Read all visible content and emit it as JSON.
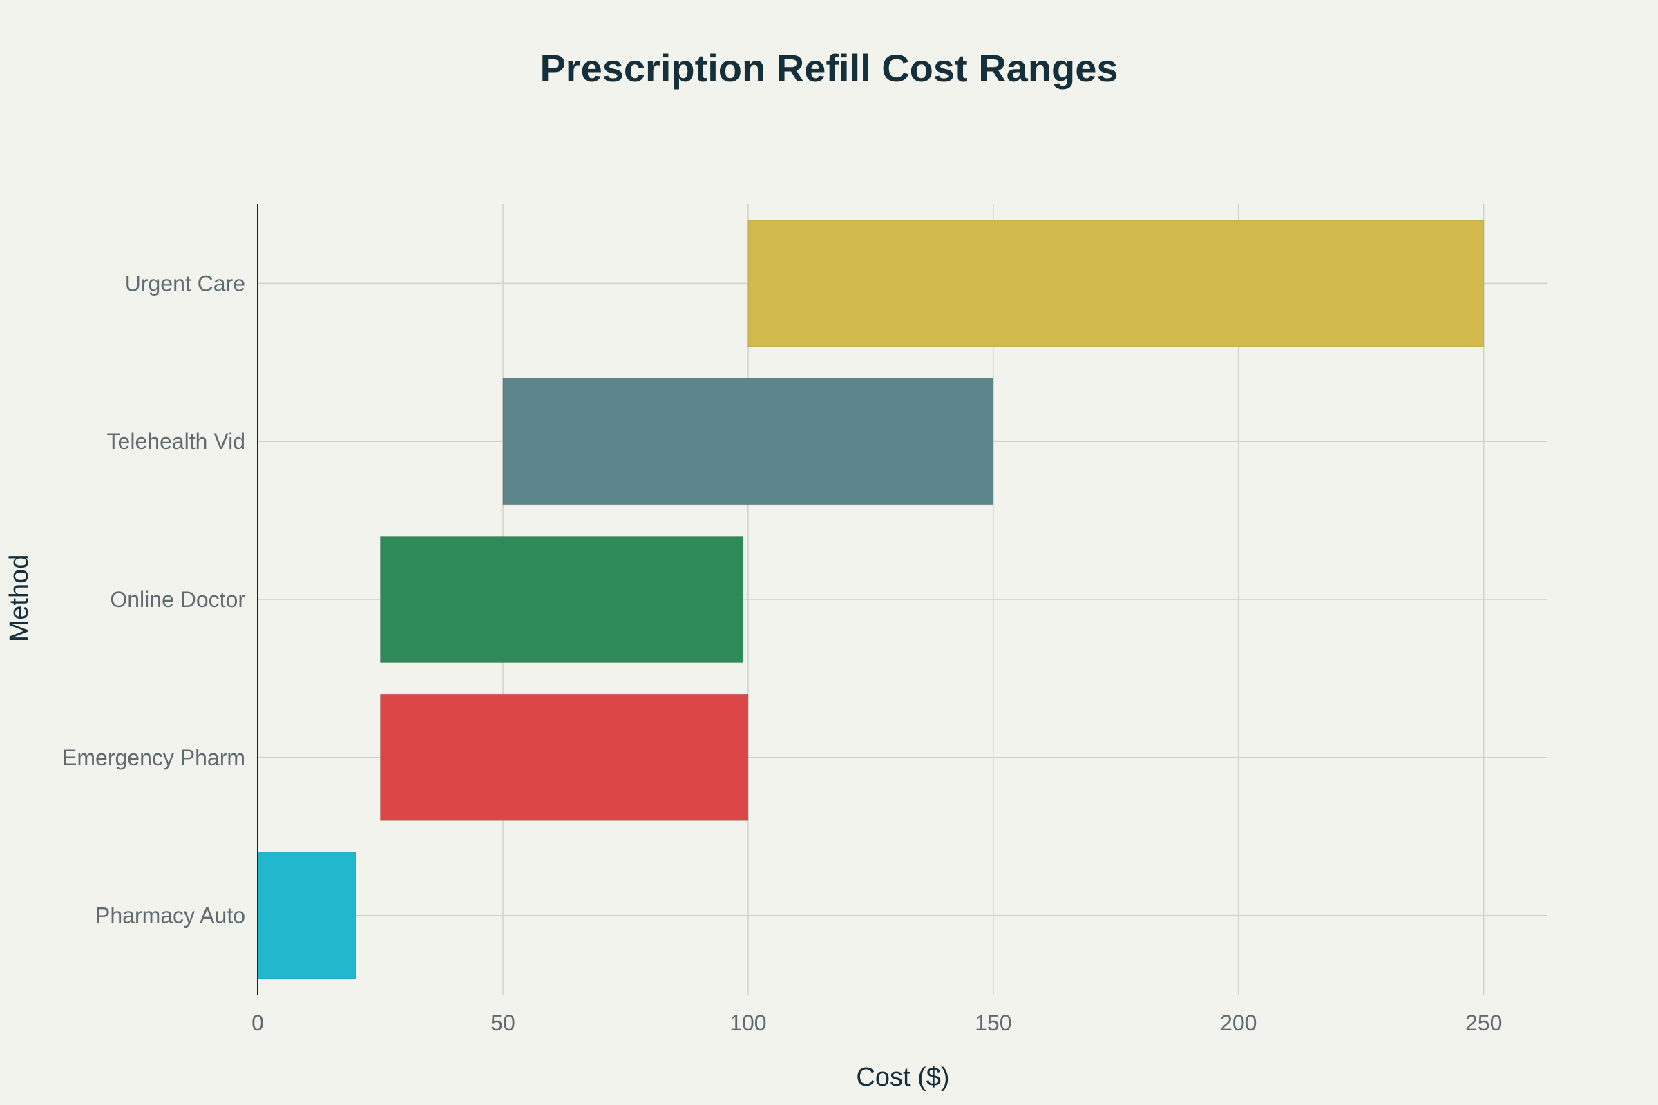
{
  "chart_data": {
    "type": "bar",
    "orientation": "horizontal",
    "title": "Prescription Refill Cost Ranges",
    "xlabel": "Cost ($)",
    "ylabel": "Method",
    "xlim": [
      0,
      263
    ],
    "x_ticks": [
      0,
      50,
      100,
      150,
      200,
      250
    ],
    "grid": true,
    "categories": [
      "Urgent Care",
      "Telehealth Vid",
      "Online Doctor",
      "Emergency Pharm",
      "Pharmacy Auto"
    ],
    "ranges": [
      {
        "category": "Urgent Care",
        "min": 100,
        "max": 250,
        "color": "#d2b94d"
      },
      {
        "category": "Telehealth Vid",
        "min": 50,
        "max": 150,
        "color": "#5d868c"
      },
      {
        "category": "Online Doctor",
        "min": 25,
        "max": 99,
        "color": "#2e8b59"
      },
      {
        "category": "Emergency Pharm",
        "min": 25,
        "max": 100,
        "color": "#dc4646"
      },
      {
        "category": "Pharmacy Auto",
        "min": 0,
        "max": 20,
        "color": "#21b8cd"
      }
    ]
  }
}
